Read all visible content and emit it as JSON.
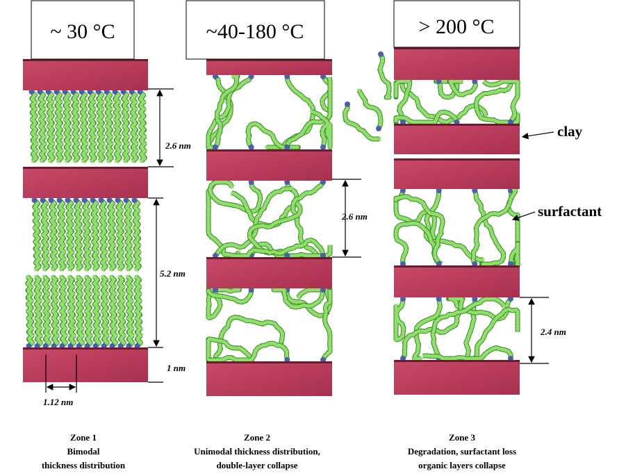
{
  "zones": [
    {
      "header": "~ 30 °C",
      "caption": [
        "Zone 1",
        "Bimodal",
        "thickness distribution"
      ],
      "dimensions": [
        "2.6 nm",
        "5.2 nm",
        "1 nm",
        "1.12 nm"
      ]
    },
    {
      "header": "~40-180 °C",
      "caption": [
        "Zone 2",
        "Unimodal thickness distribution,",
        "double-layer collapse"
      ],
      "dimensions": [
        "2.6 nm"
      ]
    },
    {
      "header": "> 200 °C",
      "caption": [
        "Zone 3",
        "Degradation, surfactant loss",
        "organic layers collapse"
      ],
      "dimensions": [
        "2.4 nm"
      ]
    }
  ],
  "labels": {
    "clay": "clay",
    "surfactant": "surfactant"
  }
}
